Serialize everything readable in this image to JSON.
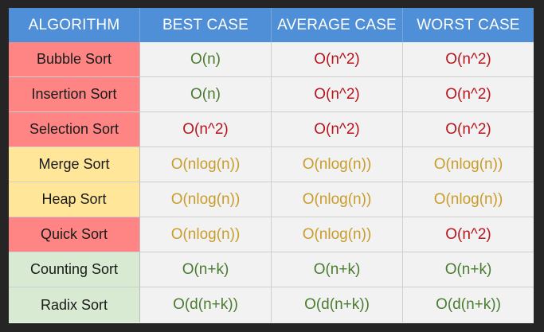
{
  "colors": {
    "header_bg": "#4f8fd8",
    "bad": "#ff8585",
    "medium": "#ffe699",
    "good": "#d9ead3",
    "text_good": "#4a7c2f",
    "text_medium": "#c99d2b",
    "text_bad": "#b7161e",
    "cell_bg": "#f2f2f2"
  },
  "headers": [
    "ALGORITHM",
    "BEST CASE",
    "AVERAGE CASE",
    "WORST CASE"
  ],
  "rows": [
    {
      "name": "Bubble Sort",
      "rating": "bad",
      "best": {
        "text": "O(n)",
        "rating": "good"
      },
      "average": {
        "text": "O(n^2)",
        "rating": "bad"
      },
      "worst": {
        "text": "O(n^2)",
        "rating": "bad"
      }
    },
    {
      "name": "Insertion Sort",
      "rating": "bad",
      "best": {
        "text": "O(n)",
        "rating": "good"
      },
      "average": {
        "text": "O(n^2)",
        "rating": "bad"
      },
      "worst": {
        "text": "O(n^2)",
        "rating": "bad"
      }
    },
    {
      "name": "Selection Sort",
      "rating": "bad",
      "best": {
        "text": "O(n^2)",
        "rating": "bad"
      },
      "average": {
        "text": "O(n^2)",
        "rating": "bad"
      },
      "worst": {
        "text": "O(n^2)",
        "rating": "bad"
      }
    },
    {
      "name": "Merge Sort",
      "rating": "medium",
      "best": {
        "text": "O(nlog(n))",
        "rating": "medium"
      },
      "average": {
        "text": "O(nlog(n))",
        "rating": "medium"
      },
      "worst": {
        "text": "O(nlog(n))",
        "rating": "medium"
      }
    },
    {
      "name": "Heap Sort",
      "rating": "medium",
      "best": {
        "text": "O(nlog(n))",
        "rating": "medium"
      },
      "average": {
        "text": "O(nlog(n))",
        "rating": "medium"
      },
      "worst": {
        "text": "O(nlog(n))",
        "rating": "medium"
      }
    },
    {
      "name": "Quick Sort",
      "rating": "bad",
      "best": {
        "text": "O(nlog(n))",
        "rating": "medium"
      },
      "average": {
        "text": "O(nlog(n))",
        "rating": "medium"
      },
      "worst": {
        "text": "O(n^2)",
        "rating": "bad"
      }
    },
    {
      "name": "Counting Sort",
      "rating": "good",
      "best": {
        "text": "O(n+k)",
        "rating": "good"
      },
      "average": {
        "text": "O(n+k)",
        "rating": "good"
      },
      "worst": {
        "text": "O(n+k)",
        "rating": "good"
      }
    },
    {
      "name": "Radix Sort",
      "rating": "good",
      "best": {
        "text": "O(d(n+k))",
        "rating": "good"
      },
      "average": {
        "text": "O(d(n+k))",
        "rating": "good"
      },
      "worst": {
        "text": "O(d(n+k))",
        "rating": "good"
      }
    }
  ]
}
